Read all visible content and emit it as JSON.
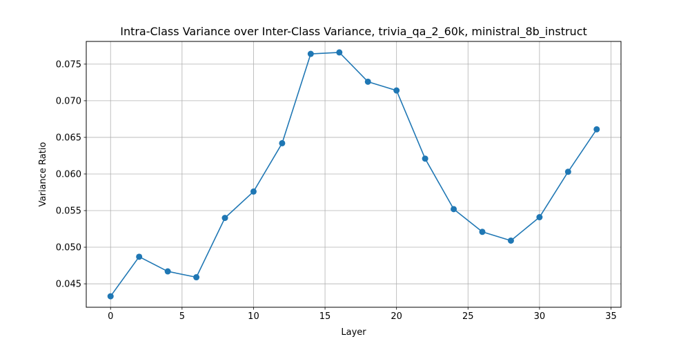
{
  "chart_data": {
    "type": "line",
    "title": "Intra-Class Variance over Inter-Class Variance, trivia_qa_2_60k, ministral_8b_instruct",
    "xlabel": "Layer",
    "ylabel": "Variance Ratio",
    "xlim": [
      -1.7,
      35.7
    ],
    "ylim": [
      0.0418,
      0.0781
    ],
    "xticks": [
      0,
      5,
      10,
      15,
      20,
      25,
      30,
      35
    ],
    "xtick_labels": [
      "0",
      "5",
      "10",
      "15",
      "20",
      "25",
      "30",
      "35"
    ],
    "yticks": [
      0.045,
      0.05,
      0.055,
      0.06,
      0.065,
      0.07,
      0.075
    ],
    "ytick_labels": [
      "0.045",
      "0.050",
      "0.055",
      "0.060",
      "0.065",
      "0.070",
      "0.075"
    ],
    "grid": true,
    "series": [
      {
        "color": "#1f77b4",
        "marker": "circle",
        "x": [
          0,
          2,
          4,
          6,
          8,
          10,
          12,
          14,
          16,
          18,
          20,
          22,
          24,
          26,
          28,
          30,
          32,
          34
        ],
        "y": [
          0.0433,
          0.0487,
          0.0467,
          0.0459,
          0.054,
          0.0576,
          0.0642,
          0.0764,
          0.0766,
          0.0726,
          0.0714,
          0.0621,
          0.0552,
          0.0521,
          0.0509,
          0.0541,
          0.0603,
          0.0661
        ]
      }
    ]
  }
}
